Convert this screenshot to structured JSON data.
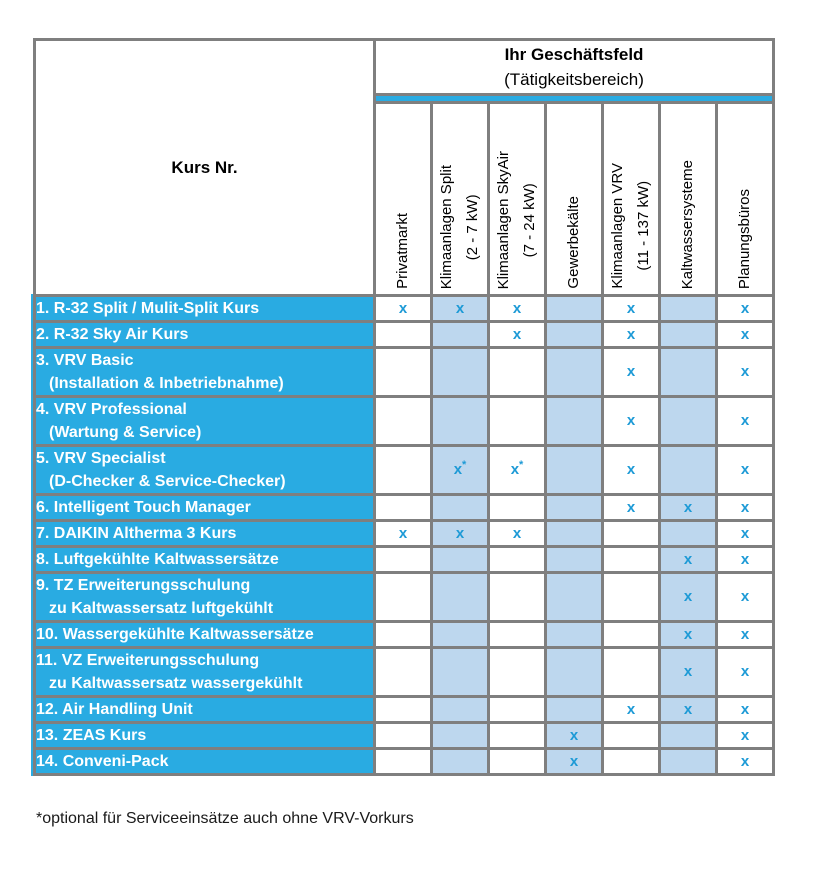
{
  "table": {
    "corner_header": "Kurs Nr.",
    "group_header": {
      "line1": "Ihr Geschäftsfeld",
      "line2": "(Tätigkeitsbereich)"
    },
    "columns": [
      {
        "label_lines": [
          "Privatmarkt"
        ]
      },
      {
        "label_lines": [
          "Klimaanlagen Split",
          "(2 - 7 kW)"
        ]
      },
      {
        "label_lines": [
          "Klimaanlagen SkyAir",
          "(7 - 24 kW)"
        ]
      },
      {
        "label_lines": [
          "Gewerbekälte"
        ]
      },
      {
        "label_lines": [
          "Klimaanlagen VRV",
          "(11 - 137 kW)"
        ]
      },
      {
        "label_lines": [
          "Kaltwassersysteme"
        ]
      },
      {
        "label_lines": [
          "Planungsbüros"
        ]
      }
    ],
    "shaded_column_indexes": [
      1,
      3,
      5
    ],
    "rows": [
      {
        "label_lines": [
          "1. R-32 Split / Mulit-Split Kurs"
        ],
        "marks": [
          "x",
          "x",
          "x",
          "",
          "x",
          "",
          "x"
        ]
      },
      {
        "label_lines": [
          "2. R-32 Sky Air Kurs"
        ],
        "marks": [
          "",
          "",
          "x",
          "",
          "x",
          "",
          "x"
        ]
      },
      {
        "label_lines": [
          "3. VRV Basic",
          "(Installation & Inbetriebnahme)"
        ],
        "marks": [
          "",
          "",
          "",
          "",
          "x",
          "",
          "x"
        ]
      },
      {
        "label_lines": [
          "4. VRV Professional",
          "(Wartung & Service)"
        ],
        "marks": [
          "",
          "",
          "",
          "",
          "x",
          "",
          "x"
        ]
      },
      {
        "label_lines": [
          "5. VRV Specialist",
          "(D-Checker & Service-Checker)"
        ],
        "marks": [
          "",
          "x*",
          "x*",
          "",
          "x",
          "",
          "x"
        ]
      },
      {
        "label_lines": [
          "6. Intelligent Touch Manager"
        ],
        "marks": [
          "",
          "",
          "",
          "",
          "x",
          "x",
          "x"
        ]
      },
      {
        "label_lines": [
          "7. DAIKIN Altherma 3 Kurs"
        ],
        "marks": [
          "x",
          "x",
          "x",
          "",
          "",
          "",
          "x"
        ]
      },
      {
        "label_lines": [
          "8. Luftgekühlte Kaltwassersätze"
        ],
        "marks": [
          "",
          "",
          "",
          "",
          "",
          "x",
          "x"
        ]
      },
      {
        "label_lines": [
          "9. TZ Erweiterungsschulung",
          "zu Kaltwassersatz luftgekühlt"
        ],
        "marks": [
          "",
          "",
          "",
          "",
          "",
          "x",
          "x"
        ]
      },
      {
        "label_lines": [
          "10. Wassergekühlte Kaltwassersätze"
        ],
        "marks": [
          "",
          "",
          "",
          "",
          "",
          "x",
          "x"
        ]
      },
      {
        "label_lines": [
          "11. VZ Erweiterungsschulung",
          "zu Kaltwassersatz wassergekühlt"
        ],
        "marks": [
          "",
          "",
          "",
          "",
          "",
          "x",
          "x"
        ]
      },
      {
        "label_lines": [
          "12. Air Handling Unit"
        ],
        "marks": [
          "",
          "",
          "",
          "",
          "x",
          "x",
          "x"
        ]
      },
      {
        "label_lines": [
          "13. ZEAS Kurs"
        ],
        "marks": [
          "",
          "",
          "",
          "x",
          "",
          "",
          "x"
        ]
      },
      {
        "label_lines": [
          "14. Conveni-Pack"
        ],
        "marks": [
          "",
          "",
          "",
          "x",
          "",
          "",
          "x"
        ]
      }
    ]
  },
  "footnote": "*optional für Serviceeinsätze auch ohne VRV-Vorkurs",
  "colors": {
    "accent_cyan": "#29ABE2",
    "shaded_column_blue": "#BDD7EE",
    "border_gray": "#7F7F7F",
    "mark_blue": "#1D9AD6"
  }
}
